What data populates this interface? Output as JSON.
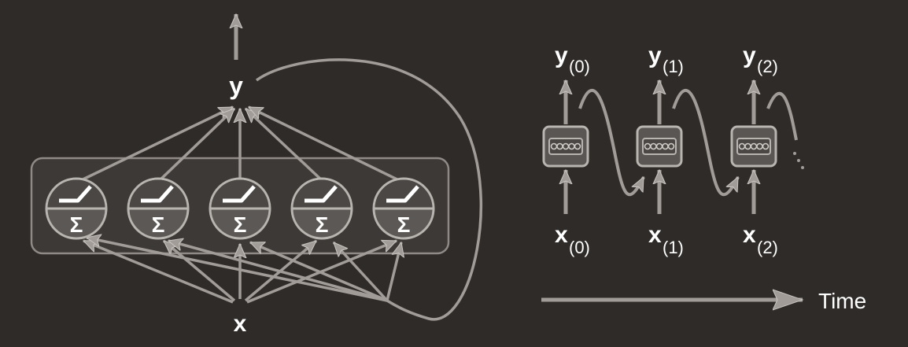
{
  "left_diagram": {
    "output_label": "y",
    "input_label": "x",
    "sum_symbol": "Σ",
    "neuron_count": 5
  },
  "right_diagram": {
    "outputs": [
      {
        "main": "y",
        "sub": "(0)"
      },
      {
        "main": "y",
        "sub": "(1)"
      },
      {
        "main": "y",
        "sub": "(2)"
      }
    ],
    "inputs": [
      {
        "main": "x",
        "sub": "(0)"
      },
      {
        "main": "x",
        "sub": "(1)"
      },
      {
        "main": "x",
        "sub": "(2)"
      }
    ],
    "time_label": "Time"
  },
  "colors": {
    "background": "#2f2b29",
    "line": "#a19c98",
    "text": "#ffffff"
  }
}
